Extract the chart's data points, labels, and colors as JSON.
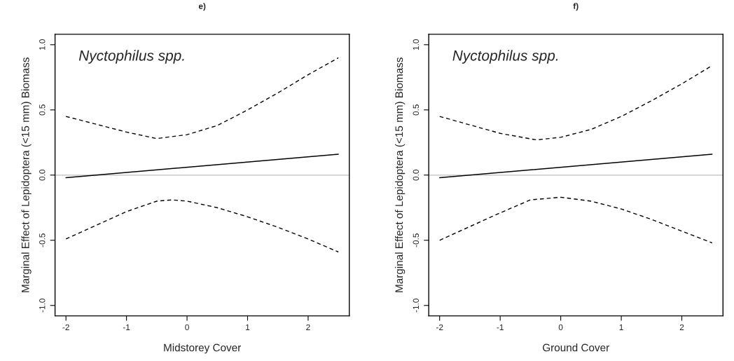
{
  "chart_data": [
    {
      "type": "line",
      "title": "e)",
      "xlabel": "Midstorey Cover",
      "ylabel": "Marginal Effect of Lepidoptera (<15 mm) Biomass",
      "annotations": [
        "Nyctophilus spp."
      ],
      "xlim": [
        -2.18,
        2.68
      ],
      "ylim": [
        -1.08,
        1.08
      ],
      "xticks": [
        -2,
        -1,
        0,
        1,
        2
      ],
      "yticks": [
        {
          "value": -1,
          "label": "-1.0"
        },
        {
          "value": -0.5,
          "label": "-0.5"
        },
        {
          "value": 0,
          "label": "0.0"
        },
        {
          "value": 0.5,
          "label": "0.5"
        },
        {
          "value": 1,
          "label": "1.0"
        }
      ],
      "grid": false,
      "legend": false,
      "ref_lines": [
        {
          "axis": "y",
          "value": 0,
          "color": "#bebebe"
        }
      ],
      "series": [
        {
          "color": "#000000",
          "line_style": "solid",
          "x": [
            -2,
            2.5
          ],
          "values": [
            -0.02,
            0.16
          ]
        },
        {
          "color": "#000000",
          "line_style": "dashed",
          "x": [
            -2,
            -1,
            -0.5,
            0,
            0.5,
            1,
            1.5,
            2,
            2.5
          ],
          "values": [
            0.45,
            0.33,
            0.28,
            0.31,
            0.38,
            0.5,
            0.63,
            0.77,
            0.9
          ]
        },
        {
          "color": "#000000",
          "line_style": "dashed",
          "x": [
            -2,
            -1,
            -0.5,
            -0.25,
            0,
            0.5,
            1,
            1.5,
            2,
            2.5
          ],
          "values": [
            -0.49,
            -0.28,
            -0.2,
            -0.19,
            -0.2,
            -0.25,
            -0.32,
            -0.4,
            -0.49,
            -0.59
          ]
        }
      ]
    },
    {
      "type": "line",
      "title": "f)",
      "xlabel": "Ground Cover",
      "ylabel": "Marginal Effect of Lepidoptera (<15 mm) Biomass",
      "annotations": [
        "Nyctophilus spp."
      ],
      "xlim": [
        -2.18,
        2.68
      ],
      "ylim": [
        -1.08,
        1.08
      ],
      "xticks": [
        -2,
        -1,
        0,
        1,
        2
      ],
      "yticks": [
        {
          "value": -1,
          "label": "-1.0"
        },
        {
          "value": -0.5,
          "label": "-0.5"
        },
        {
          "value": 0,
          "label": "0.0"
        },
        {
          "value": 0.5,
          "label": "0.5"
        },
        {
          "value": 1,
          "label": "1.0"
        }
      ],
      "grid": false,
      "legend": false,
      "ref_lines": [
        {
          "axis": "y",
          "value": 0,
          "color": "#bebebe"
        }
      ],
      "series": [
        {
          "color": "#000000",
          "line_style": "solid",
          "x": [
            -2,
            2.5
          ],
          "values": [
            -0.02,
            0.16
          ]
        },
        {
          "color": "#000000",
          "line_style": "dashed",
          "x": [
            -2,
            -1,
            -0.4,
            0,
            0.5,
            1,
            1.5,
            2,
            2.5
          ],
          "values": [
            0.45,
            0.32,
            0.27,
            0.29,
            0.35,
            0.45,
            0.57,
            0.7,
            0.84
          ]
        },
        {
          "color": "#000000",
          "line_style": "dashed",
          "x": [
            -2,
            -1,
            -0.5,
            0,
            0.5,
            1,
            1.5,
            2,
            2.5
          ],
          "values": [
            -0.5,
            -0.29,
            -0.19,
            -0.17,
            -0.2,
            -0.26,
            -0.34,
            -0.43,
            -0.52
          ]
        }
      ]
    }
  ]
}
